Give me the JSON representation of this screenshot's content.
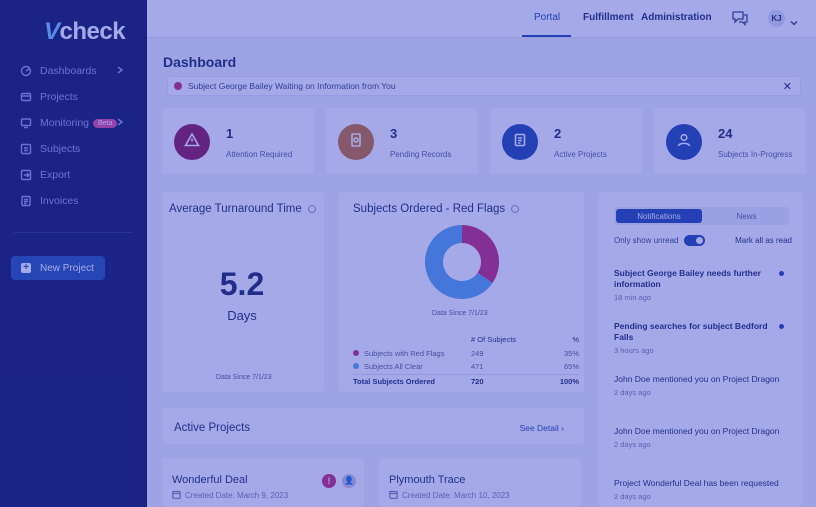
{
  "brand": {
    "logo_v": "V",
    "logo_rest": "check"
  },
  "sidebar": {
    "items": [
      {
        "label": "Dashboards",
        "icon": "dashboard-icon",
        "has_chevron": true
      },
      {
        "label": "Projects",
        "icon": "folder-icon",
        "has_chevron": false
      },
      {
        "label": "Monitoring",
        "icon": "monitor-icon",
        "badge": "Beta",
        "has_chevron": true
      },
      {
        "label": "Subjects",
        "icon": "subjects-icon",
        "has_chevron": false
      },
      {
        "label": "Export",
        "icon": "export-icon",
        "has_chevron": false
      },
      {
        "label": "Invoices",
        "icon": "invoice-icon",
        "has_chevron": false
      }
    ],
    "new_project_label": "New Project"
  },
  "topbar": {
    "links": [
      "Portal",
      "Fulfillment",
      "Administration"
    ],
    "avatar_initials": "KJ"
  },
  "page": {
    "title": "Dashboard",
    "alert_text": "Subject George Bailey Waiting on Information from You",
    "alert_close": "✕"
  },
  "stats": [
    {
      "value": "1",
      "label": "Attention Required",
      "color": "#8e1b4f"
    },
    {
      "value": "3",
      "label": "Pending Records",
      "color": "#c8742a"
    },
    {
      "value": "2",
      "label": "Active Projects",
      "color": "#1f4ca6"
    },
    {
      "value": "24",
      "label": "Subjects In-Progress",
      "color": "#1f4ca6"
    }
  ],
  "turnaround": {
    "title": "Average Turnaround Time",
    "value": "5.2",
    "unit": "Days",
    "note": "Data Since 7/1/23"
  },
  "red_flags": {
    "title": "Subjects Ordered - Red Flags",
    "note": "Data Since 7/1/23",
    "col_headers": [
      "# Of Subjects",
      "%"
    ],
    "rows": [
      {
        "label": "Subjects with Red Flags",
        "count": "249",
        "pct": "35%",
        "color": "#c52e6f"
      },
      {
        "label": "Subjects All Clear",
        "count": "471",
        "pct": "65%",
        "color": "#5aa8e6"
      }
    ],
    "total": {
      "label": "Total Subjects Ordered",
      "count": "720",
      "pct": "100%"
    }
  },
  "chart_data": {
    "type": "pie",
    "title": "Subjects Ordered - Red Flags",
    "categories": [
      "Subjects with Red Flags",
      "Subjects All Clear"
    ],
    "values": [
      249,
      471
    ],
    "colors": [
      "#c52e6f",
      "#5aa8e6"
    ],
    "donut": true
  },
  "notifications": {
    "tabs": [
      "Notifications",
      "News"
    ],
    "only_unread_label": "Only show unread",
    "mark_all_label": "Mark all as read",
    "items": [
      {
        "text": "Subject George Bailey needs further information",
        "time": "18 min ago",
        "unread": true
      },
      {
        "text": "Pending searches for subject Bedford Falls",
        "time": "3 hours ago",
        "unread": true
      },
      {
        "text": "John Doe mentioned you on Project Dragon",
        "time": "2 days ago",
        "unread": false
      },
      {
        "text": "John Doe mentioned you on Project Dragon",
        "time": "2 days ago",
        "unread": false
      },
      {
        "text": "Project Wonderful Deal has been requested",
        "time": "2 days ago",
        "unread": false
      }
    ]
  },
  "active_projects": {
    "title": "Active Projects",
    "see_detail": "See Detail",
    "projects": [
      {
        "name": "Wonderful Deal",
        "date": "Created Date: March 9, 2023",
        "alert_badge": "!",
        "user_badge": "👤"
      },
      {
        "name": "Plymouth Trace",
        "date": "Created Date: March 10, 2023"
      }
    ]
  }
}
